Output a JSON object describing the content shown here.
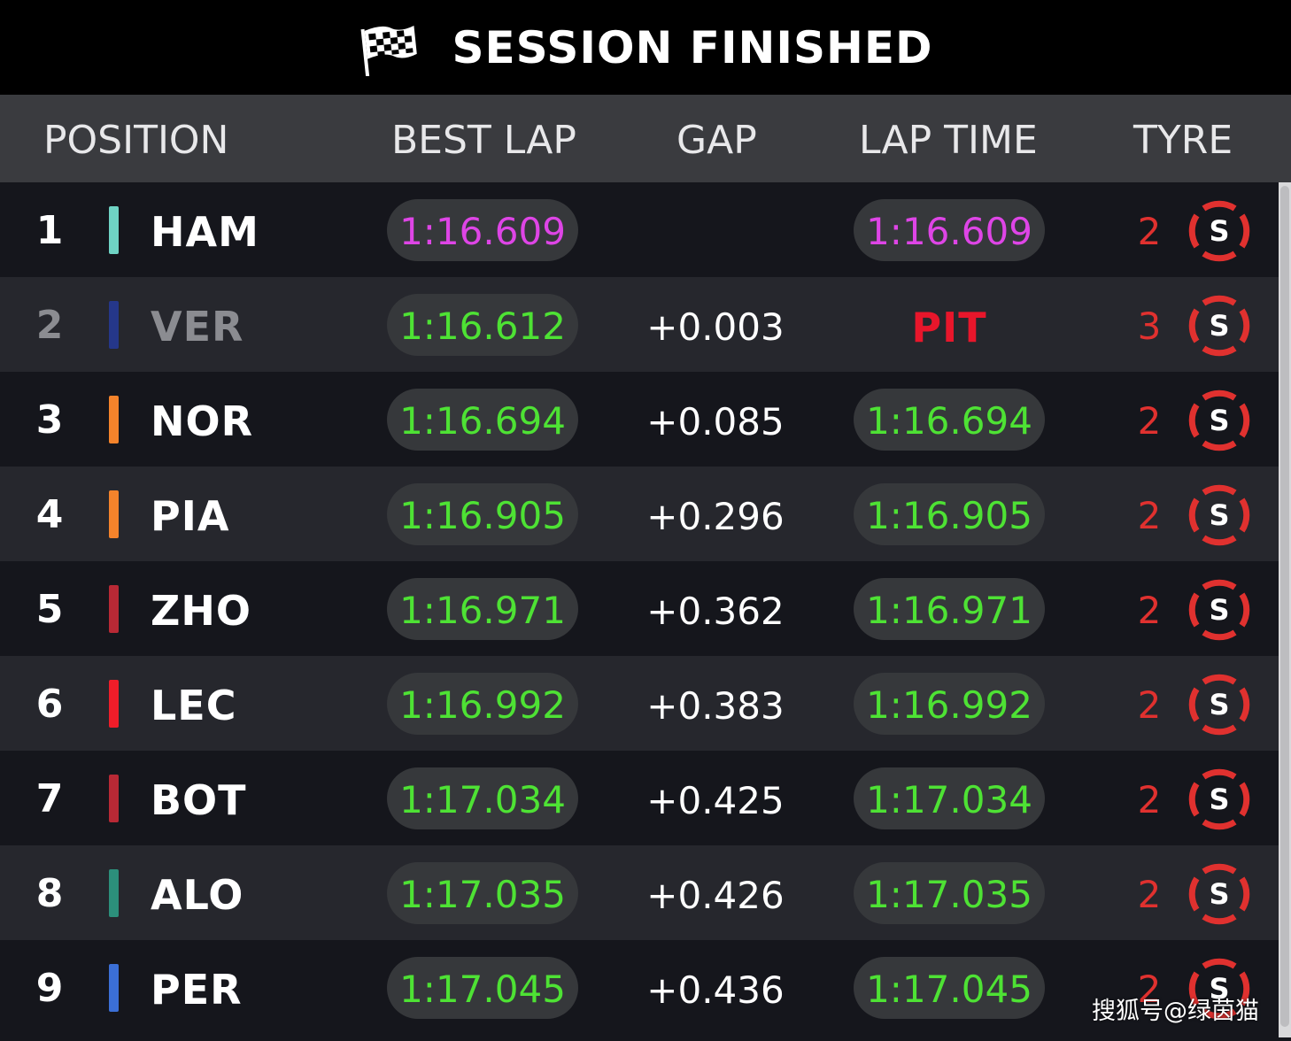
{
  "title": "SESSION FINISHED",
  "columns": {
    "position": "POSITION",
    "best_lap": "BEST LAP",
    "gap": "GAP",
    "lap_time": "LAP TIME",
    "tyre": "TYRE"
  },
  "colors": {
    "purple_time": "#de45e6",
    "green_time": "#4ee234",
    "pit": "#e8162b",
    "tyre_red": "#e0312f"
  },
  "rows": [
    {
      "pos": "1",
      "driver": "HAM",
      "team_color": "#6fd3c4",
      "best_lap": "1:16.609",
      "best_class": "purple",
      "gap": "",
      "lap_time": "1:16.609",
      "lap_class": "purple",
      "pit": "",
      "tyre_age": "2",
      "tyre_compound": "S",
      "tyre_icon": "soft-tyre-icon"
    },
    {
      "pos": "2",
      "driver": "VER",
      "team_color": "#25378a",
      "best_lap": "1:16.612",
      "best_class": "green",
      "gap": "+0.003",
      "lap_time": "",
      "lap_class": "",
      "pit": "PIT",
      "tyre_age": "3",
      "tyre_compound": "S",
      "tyre_icon": "soft-tyre-icon"
    },
    {
      "pos": "3",
      "driver": "NOR",
      "team_color": "#f4832b",
      "best_lap": "1:16.694",
      "best_class": "green",
      "gap": "+0.085",
      "lap_time": "1:16.694",
      "lap_class": "green",
      "pit": "",
      "tyre_age": "2",
      "tyre_compound": "S",
      "tyre_icon": "soft-tyre-icon"
    },
    {
      "pos": "4",
      "driver": "PIA",
      "team_color": "#f4832b",
      "best_lap": "1:16.905",
      "best_class": "green",
      "gap": "+0.296",
      "lap_time": "1:16.905",
      "lap_class": "green",
      "pit": "",
      "tyre_age": "2",
      "tyre_compound": "S",
      "tyre_icon": "soft-tyre-icon"
    },
    {
      "pos": "5",
      "driver": "ZHO",
      "team_color": "#b82935",
      "best_lap": "1:16.971",
      "best_class": "green",
      "gap": "+0.362",
      "lap_time": "1:16.971",
      "lap_class": "green",
      "pit": "",
      "tyre_age": "2",
      "tyre_compound": "S",
      "tyre_icon": "soft-tyre-icon"
    },
    {
      "pos": "6",
      "driver": "LEC",
      "team_color": "#ef1d29",
      "best_lap": "1:16.992",
      "best_class": "green",
      "gap": "+0.383",
      "lap_time": "1:16.992",
      "lap_class": "green",
      "pit": "",
      "tyre_age": "2",
      "tyre_compound": "S",
      "tyre_icon": "soft-tyre-icon"
    },
    {
      "pos": "7",
      "driver": "BOT",
      "team_color": "#b82935",
      "best_lap": "1:17.034",
      "best_class": "green",
      "gap": "+0.425",
      "lap_time": "1:17.034",
      "lap_class": "green",
      "pit": "",
      "tyre_age": "2",
      "tyre_compound": "S",
      "tyre_icon": "soft-tyre-icon"
    },
    {
      "pos": "8",
      "driver": "ALO",
      "team_color": "#2c8f7b",
      "best_lap": "1:17.035",
      "best_class": "green",
      "gap": "+0.426",
      "lap_time": "1:17.035",
      "lap_class": "green",
      "pit": "",
      "tyre_age": "2",
      "tyre_compound": "S",
      "tyre_icon": "soft-tyre-icon"
    },
    {
      "pos": "9",
      "driver": "PER",
      "team_color": "#3b6fd6",
      "best_lap": "1:17.045",
      "best_class": "green",
      "gap": "+0.436",
      "lap_time": "1:17.045",
      "lap_class": "green",
      "pit": "",
      "tyre_age": "2",
      "tyre_compound": "S",
      "tyre_icon": "soft-tyre-icon"
    }
  ],
  "watermark": "搜狐号@绿茵猫"
}
